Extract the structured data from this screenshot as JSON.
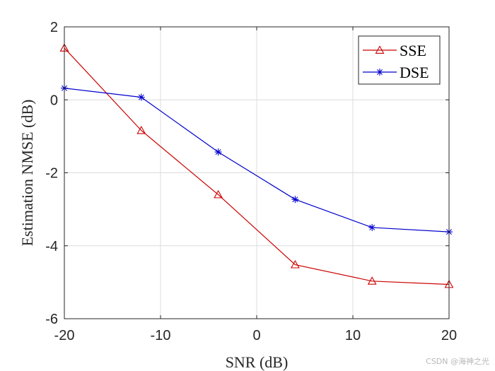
{
  "chart_data": {
    "type": "line",
    "title": "",
    "xlabel": "SNR (dB)",
    "ylabel": "Estimation NMSE (dB)",
    "x": [
      -20,
      -12,
      -4,
      4,
      12,
      20
    ],
    "xlim": [
      -20,
      20
    ],
    "ylim": [
      -6,
      2
    ],
    "xticks": [
      -20,
      -10,
      0,
      10,
      20
    ],
    "yticks": [
      -6,
      -4,
      -2,
      0,
      2
    ],
    "grid": true,
    "legend_position": "top-right",
    "series": [
      {
        "name": "SSE",
        "color": "#cc0000",
        "marker": "triangle",
        "values": [
          1.42,
          -0.84,
          -2.6,
          -4.52,
          -4.97,
          -5.06
        ]
      },
      {
        "name": "DSE",
        "color": "#0000cc",
        "marker": "asterisk",
        "values": [
          0.32,
          0.07,
          -1.43,
          -2.73,
          -3.5,
          -3.62
        ]
      }
    ]
  },
  "watermark": "CSDN @海神之光"
}
